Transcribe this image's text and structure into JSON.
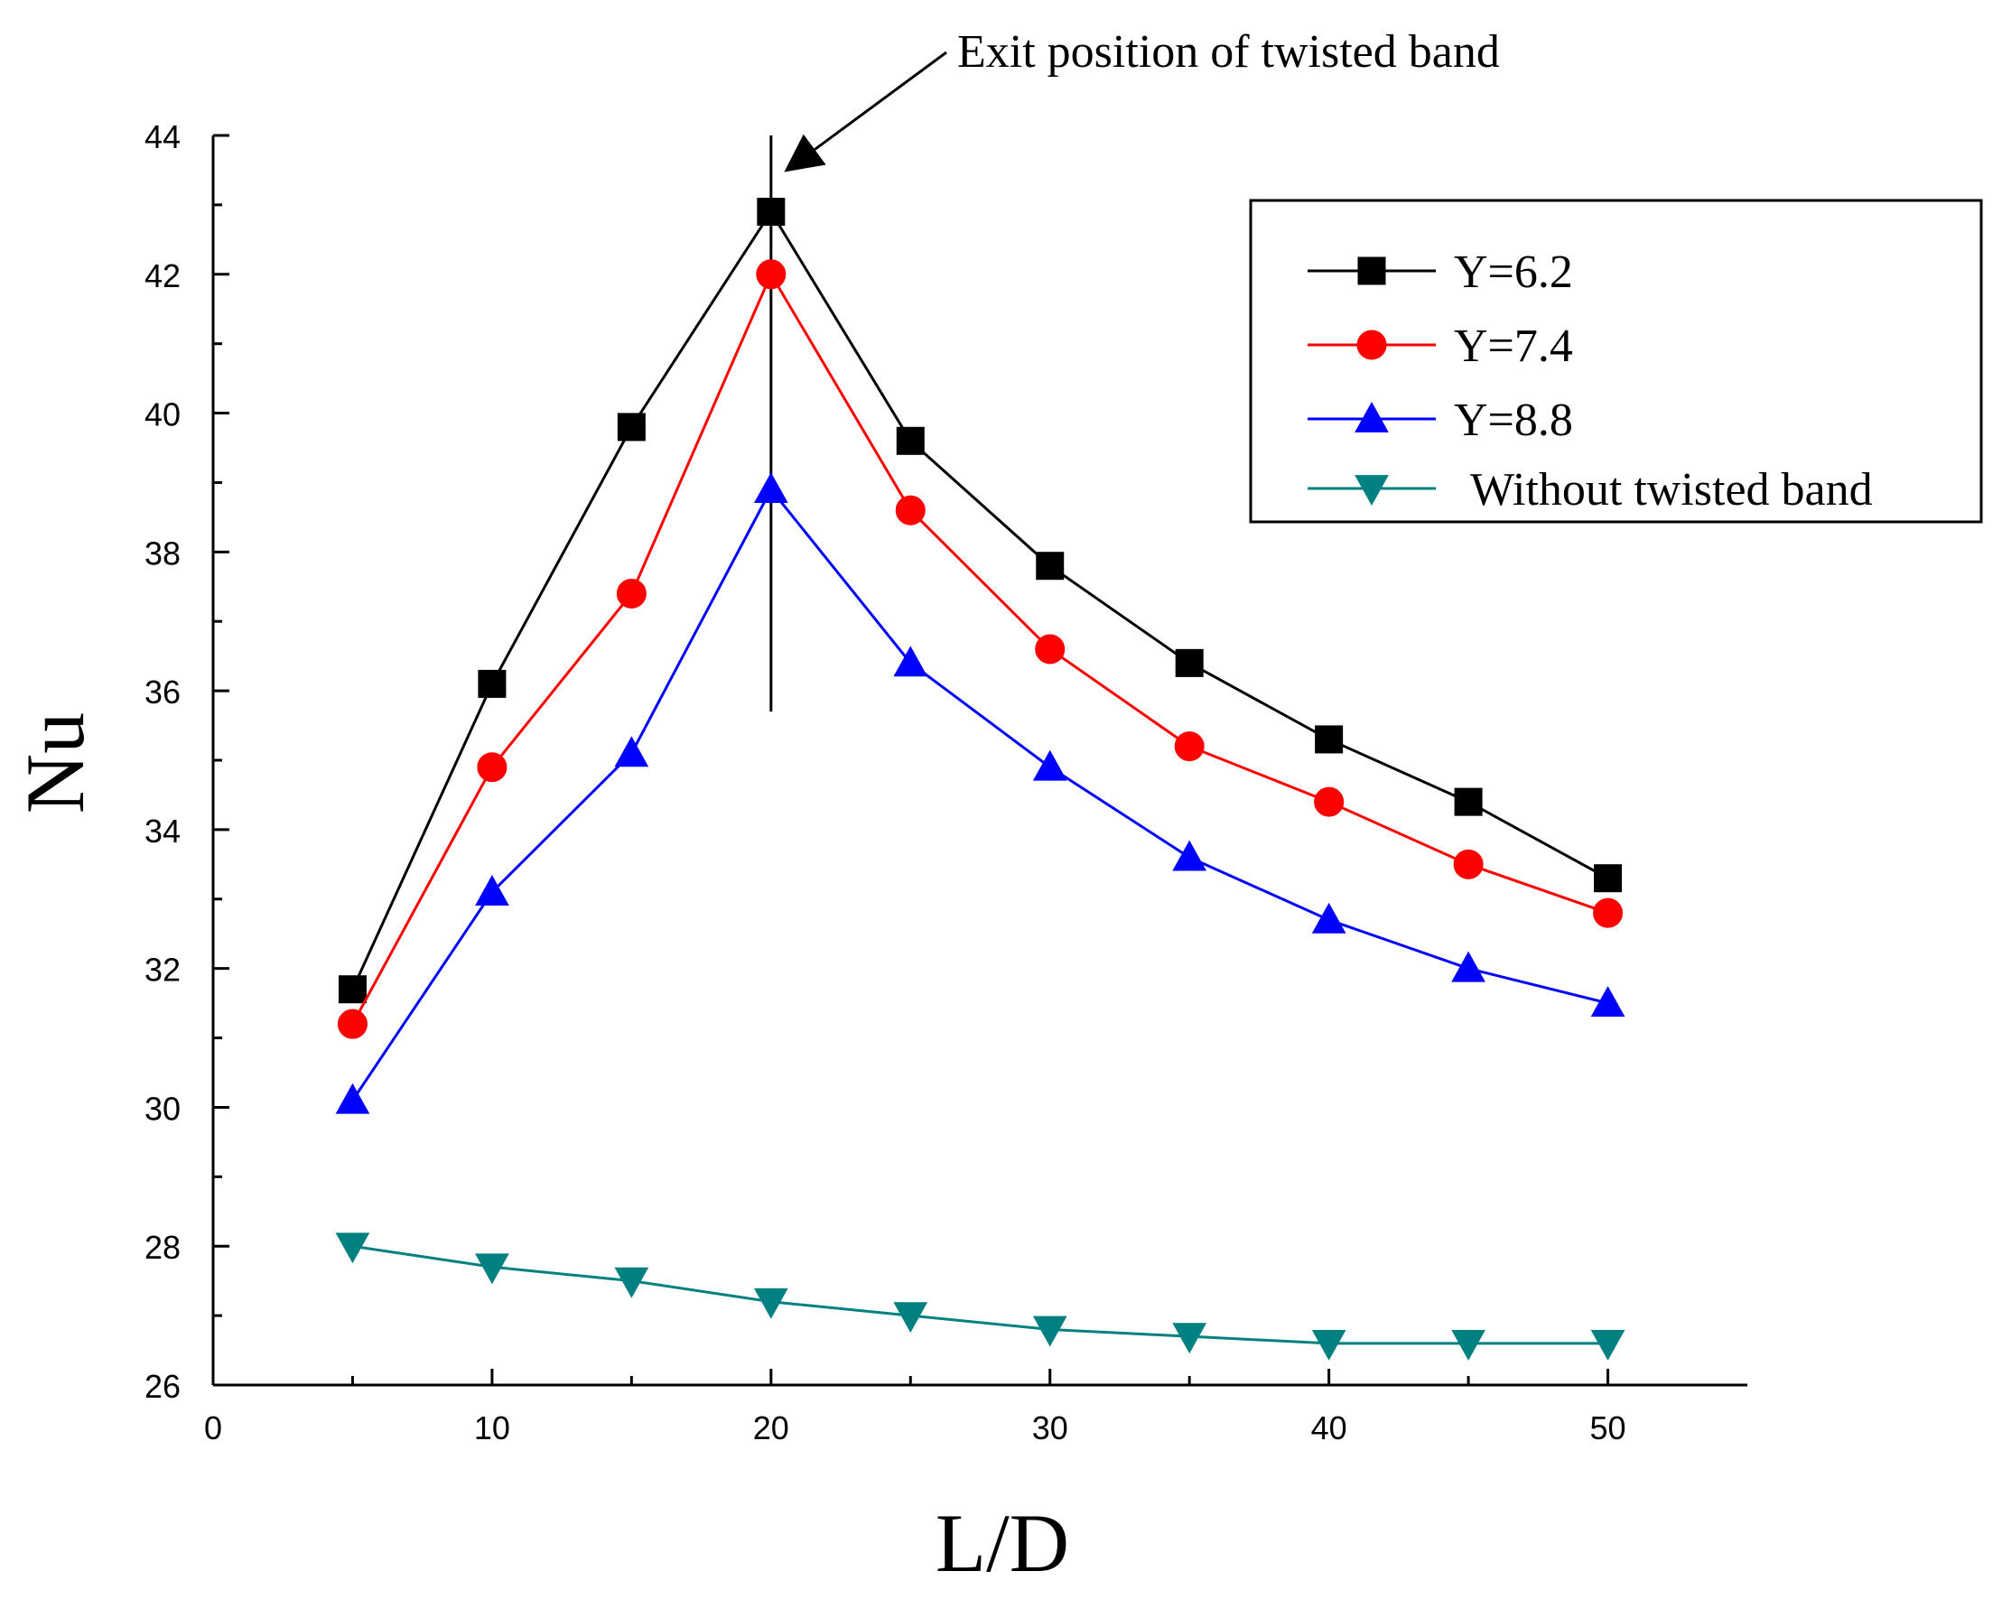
{
  "chart_data": {
    "type": "line",
    "title": "",
    "xlabel": "L/D",
    "ylabel": "Nu",
    "xlim": [
      0,
      55
    ],
    "ylim": [
      26,
      44
    ],
    "x_ticks": [
      0,
      10,
      20,
      30,
      40,
      50
    ],
    "y_ticks": [
      26,
      28,
      30,
      32,
      34,
      36,
      38,
      40,
      42,
      44
    ],
    "x": [
      5,
      10,
      15,
      20,
      25,
      30,
      35,
      40,
      45,
      50
    ],
    "series": [
      {
        "name": "Y=6.2",
        "marker": "square",
        "color": "#000000",
        "values": [
          31.7,
          36.1,
          39.8,
          42.9,
          39.6,
          37.8,
          36.4,
          35.3,
          34.4,
          33.3
        ]
      },
      {
        "name": "Y=7.4",
        "marker": "circle",
        "color": "#ff0000",
        "values": [
          31.2,
          34.9,
          37.4,
          42.0,
          38.6,
          36.6,
          35.2,
          34.4,
          33.5,
          32.8
        ]
      },
      {
        "name": "Y=8.8",
        "marker": "triangle-up",
        "color": "#0000ff",
        "values": [
          30.1,
          33.1,
          35.1,
          38.9,
          36.4,
          34.9,
          33.6,
          32.7,
          32.0,
          31.5
        ]
      },
      {
        "name": "Without twisted band",
        "marker": "triangle-down",
        "color": "#008080",
        "values": [
          28.0,
          27.7,
          27.5,
          27.2,
          27.0,
          26.8,
          26.7,
          26.6,
          26.6,
          26.6
        ]
      }
    ],
    "annotation": {
      "text": "Exit position of twisted band",
      "x": 20,
      "line_from": 35.7,
      "line_to": 44
    },
    "legend_position": "top-right"
  }
}
